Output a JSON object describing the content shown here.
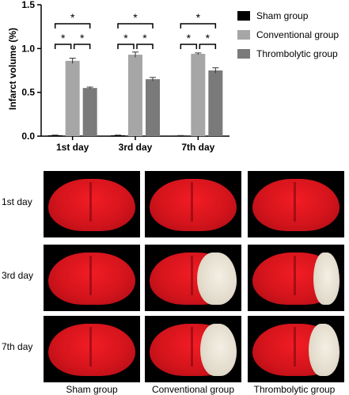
{
  "chart_data": {
    "type": "bar",
    "categories": [
      "1st day",
      "3rd day",
      "7th day"
    ],
    "ylabel": "Infarct volume (%)",
    "ylim": [
      0,
      1.5
    ],
    "yticks": [
      "0.0",
      "0.5",
      "1.0",
      "1.5"
    ],
    "series": [
      {
        "name": "Sham group",
        "values": [
          0.01,
          0.01,
          0.005
        ],
        "errors": [
          0.002,
          0.002,
          0.002
        ],
        "color": "#000000"
      },
      {
        "name": "Conventional group",
        "values": [
          0.86,
          0.93,
          0.94
        ],
        "errors": [
          0.03,
          0.03,
          0.01
        ],
        "color": "#a6a6a6"
      },
      {
        "name": "Thrombolytic group",
        "values": [
          0.55,
          0.65,
          0.75
        ],
        "errors": [
          0.01,
          0.02,
          0.03
        ],
        "color": "#7a7a7a"
      }
    ],
    "significance_marker": "*",
    "legend_position": "top-right"
  },
  "photo_panel": {
    "row_labels": [
      "1st day",
      "3rd day",
      "7th day"
    ],
    "column_labels": [
      "Sham group",
      "Conventional group",
      "Thrombolytic group"
    ],
    "infarct_fraction": [
      [
        0.0,
        0.0,
        0.0
      ],
      [
        0.0,
        0.45,
        0.3
      ],
      [
        0.0,
        0.42,
        0.35
      ]
    ]
  }
}
